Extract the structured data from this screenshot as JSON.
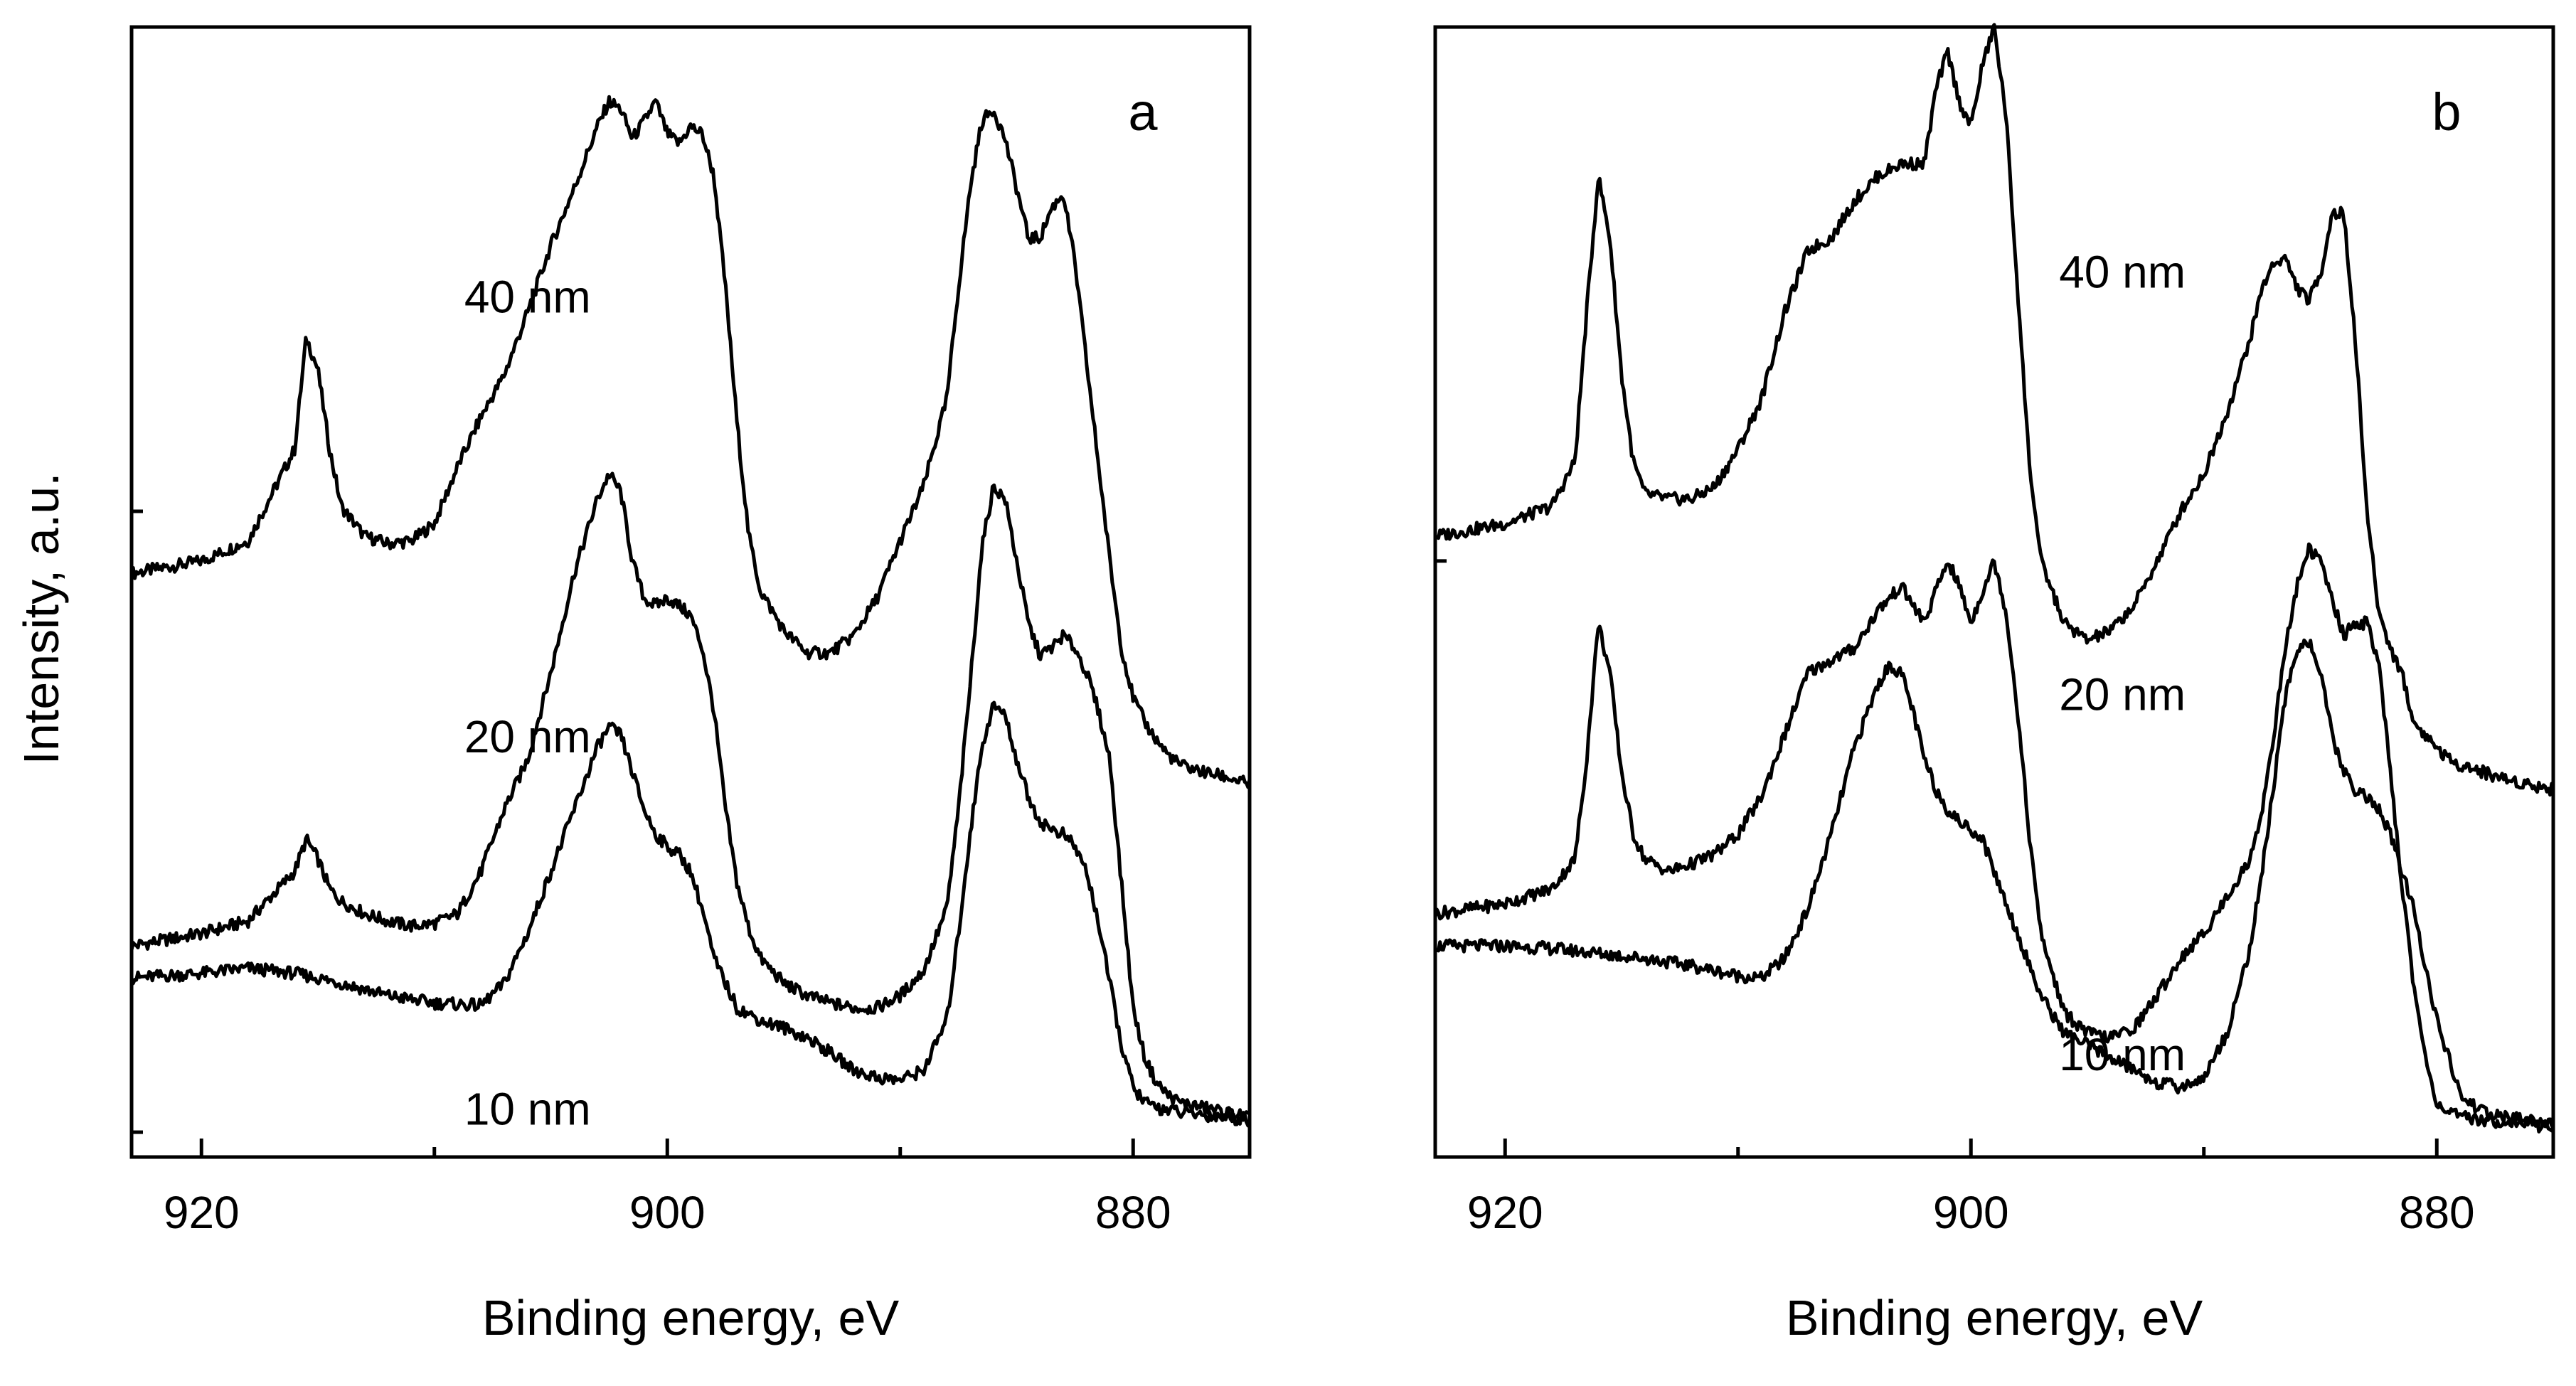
{
  "ylabel": "Intensity, a.u.",
  "colors": {
    "line": "#000000",
    "background": "#ffffff"
  },
  "chart_data": [
    {
      "type": "line",
      "panel_label": "a",
      "xlabel": "Binding energy, eV",
      "ylabel": "Intensity, a.u.",
      "xlim": [
        923,
        875
      ],
      "x_reversed": true,
      "ylim": [
        -0.1,
        4.45
      ],
      "xticks": [
        920,
        900,
        880
      ],
      "xtick_labels": [
        "920",
        "900",
        "880"
      ],
      "minor_xticks": [
        910,
        890
      ],
      "yticks": [
        0,
        2.5
      ],
      "y_scale": "arbitrary (offset stacked spectra)",
      "series": [
        {
          "name": "40 nm",
          "label_at": [
            906,
            3.3
          ],
          "x": [
            923,
            920,
            918,
            916,
            915.5,
            915,
            914.5,
            914,
            913,
            912,
            911,
            910,
            909,
            908,
            907,
            906,
            905,
            904,
            903,
            902.5,
            902,
            901.5,
            901,
            900.5,
            900,
            899.5,
            899,
            898.5,
            898,
            897.5,
            897,
            896.5,
            896,
            895,
            894,
            893,
            892,
            891,
            890,
            889,
            888,
            887.5,
            887,
            886.5,
            886,
            885.5,
            885,
            884.5,
            884,
            883.5,
            883,
            882.5,
            882,
            881.5,
            881,
            880.5,
            880,
            879.5,
            879,
            878.5,
            878,
            877,
            876,
            875
          ],
          "y": [
            2.25,
            2.3,
            2.38,
            2.75,
            3.2,
            3.07,
            2.75,
            2.52,
            2.4,
            2.37,
            2.38,
            2.45,
            2.68,
            2.88,
            3.05,
            3.3,
            3.57,
            3.8,
            4.05,
            4.15,
            4.12,
            4.0,
            4.07,
            4.15,
            4.02,
            3.98,
            4.05,
            4.02,
            3.85,
            3.4,
            2.85,
            2.4,
            2.18,
            2.02,
            1.93,
            1.93,
            2.0,
            2.15,
            2.38,
            2.6,
            2.95,
            3.4,
            3.8,
            4.07,
            4.12,
            4.0,
            3.8,
            3.6,
            3.6,
            3.72,
            3.78,
            3.5,
            3.1,
            2.7,
            2.3,
            1.95,
            1.75,
            1.65,
            1.58,
            1.52,
            1.48,
            1.45,
            1.43,
            1.4
          ]
        },
        {
          "name": "20 nm",
          "label_at": [
            906,
            1.53
          ],
          "x": [
            923,
            920,
            918,
            916,
            915.5,
            915,
            914.5,
            914,
            913,
            912,
            911,
            910,
            909,
            908,
            907,
            906,
            905,
            904,
            903,
            902.5,
            902,
            901.5,
            901,
            900.5,
            900,
            899.5,
            899,
            898.5,
            898,
            897.5,
            897,
            896.5,
            896,
            895,
            894,
            893,
            892,
            891,
            890,
            889,
            888,
            887.5,
            887,
            886.5,
            886,
            885.5,
            885,
            884.5,
            884,
            883.5,
            883,
            882.5,
            882,
            881.5,
            881,
            880.5,
            880,
            879.5,
            879,
            878.5,
            878,
            877,
            876,
            875
          ],
          "y": [
            0.75,
            0.8,
            0.85,
            1.05,
            1.18,
            1.1,
            0.98,
            0.93,
            0.88,
            0.85,
            0.83,
            0.84,
            0.88,
            1.05,
            1.3,
            1.5,
            1.85,
            2.25,
            2.55,
            2.65,
            2.58,
            2.3,
            2.15,
            2.12,
            2.15,
            2.12,
            2.08,
            1.95,
            1.7,
            1.3,
            1.0,
            0.82,
            0.7,
            0.6,
            0.55,
            0.52,
            0.5,
            0.5,
            0.55,
            0.65,
            0.9,
            1.3,
            1.8,
            2.35,
            2.6,
            2.55,
            2.3,
            2.05,
            1.92,
            1.95,
            2.0,
            1.95,
            1.85,
            1.7,
            1.5,
            1.0,
            0.5,
            0.3,
            0.2,
            0.15,
            0.12,
            0.1,
            0.08,
            0.06
          ]
        },
        {
          "name": "10 nm",
          "label_at": [
            906,
            0.03
          ],
          "x": [
            923,
            920,
            918,
            916,
            914,
            912,
            910,
            908,
            907,
            906,
            905,
            904,
            903,
            902.5,
            902,
            901.5,
            901,
            900.5,
            900,
            899.5,
            899,
            898.5,
            898,
            897,
            896,
            895,
            894,
            893,
            892,
            891,
            890,
            889,
            888,
            887.5,
            887,
            886.5,
            886,
            885.5,
            885,
            884.5,
            884,
            883.5,
            883,
            882.5,
            882,
            881.5,
            881,
            880.5,
            880,
            879.5,
            879,
            878,
            877,
            876,
            875
          ],
          "y": [
            0.62,
            0.64,
            0.66,
            0.64,
            0.6,
            0.55,
            0.52,
            0.51,
            0.6,
            0.8,
            1.05,
            1.3,
            1.55,
            1.63,
            1.6,
            1.45,
            1.3,
            1.2,
            1.15,
            1.12,
            1.05,
            0.9,
            0.7,
            0.5,
            0.45,
            0.42,
            0.38,
            0.32,
            0.25,
            0.22,
            0.21,
            0.25,
            0.45,
            0.8,
            1.2,
            1.55,
            1.72,
            1.68,
            1.5,
            1.35,
            1.25,
            1.22,
            1.2,
            1.15,
            1.05,
            0.85,
            0.6,
            0.35,
            0.18,
            0.12,
            0.1,
            0.08,
            0.07,
            0.06,
            0.05
          ]
        }
      ]
    },
    {
      "type": "line",
      "panel_label": "b",
      "xlabel": "Binding energy, eV",
      "ylabel": "Intensity, a.u.",
      "xlim": [
        923,
        875
      ],
      "x_reversed": true,
      "ylim": [
        -0.1,
        4.45
      ],
      "xticks": [
        920,
        900,
        880
      ],
      "xtick_labels": [
        "920",
        "900",
        "880"
      ],
      "minor_xticks": [
        910,
        890
      ],
      "yticks": [
        2.3
      ],
      "y_scale": "arbitrary (offset stacked spectra)",
      "series": [
        {
          "name": "40 nm",
          "label_at": [
            893.5,
            3.4
          ],
          "x": [
            923,
            920,
            918,
            917,
            916.5,
            916,
            915.5,
            915,
            914.5,
            914,
            913,
            912,
            911,
            910,
            909,
            908,
            907,
            906,
            905,
            904,
            903,
            902,
            901.5,
            901,
            900.5,
            900,
            899.5,
            899,
            898.5,
            898,
            897.5,
            897,
            896,
            895,
            894,
            893,
            892,
            891,
            890,
            889,
            888,
            887.5,
            887,
            886.5,
            886,
            885.5,
            885,
            884.5,
            884,
            883.5,
            883,
            882.5,
            882,
            881.5,
            881,
            880.5,
            880,
            879.5,
            879,
            878,
            877,
            876,
            875
          ],
          "y": [
            2.4,
            2.45,
            2.52,
            2.7,
            3.3,
            3.85,
            3.6,
            3.05,
            2.7,
            2.57,
            2.55,
            2.55,
            2.6,
            2.75,
            2.95,
            3.3,
            3.55,
            3.6,
            3.75,
            3.85,
            3.9,
            3.9,
            4.2,
            4.35,
            4.15,
            4.05,
            4.3,
            4.45,
            4.1,
            3.4,
            2.7,
            2.3,
            2.05,
            1.98,
            2.02,
            2.12,
            2.3,
            2.5,
            2.65,
            2.9,
            3.2,
            3.4,
            3.5,
            3.52,
            3.4,
            3.35,
            3.45,
            3.7,
            3.7,
            3.2,
            2.5,
            2.1,
            1.95,
            1.85,
            1.65,
            1.6,
            1.55,
            1.5,
            1.48,
            1.45,
            1.42,
            1.4,
            1.38
          ]
        },
        {
          "name": "20 nm",
          "label_at": [
            893.5,
            1.7
          ],
          "x": [
            923,
            920,
            918,
            917,
            916.5,
            916,
            915.5,
            915,
            914.5,
            914,
            913,
            912,
            911,
            910,
            909,
            908,
            907,
            906,
            905,
            904,
            903,
            902,
            901.5,
            901,
            900.5,
            900,
            899.5,
            899,
            898.5,
            898,
            897.5,
            897,
            896,
            895,
            894,
            893,
            892,
            891,
            890,
            889,
            888,
            887.5,
            887,
            886.5,
            886,
            885.5,
            885,
            884.5,
            884,
            883.5,
            883,
            882.5,
            882,
            881.5,
            881,
            880.5,
            880,
            879.5,
            879,
            878,
            877,
            876,
            875
          ],
          "y": [
            0.88,
            0.92,
            0.98,
            1.1,
            1.5,
            2.05,
            1.85,
            1.45,
            1.2,
            1.1,
            1.05,
            1.08,
            1.12,
            1.2,
            1.35,
            1.6,
            1.85,
            1.9,
            1.95,
            2.1,
            2.2,
            2.05,
            2.18,
            2.3,
            2.2,
            2.05,
            2.18,
            2.3,
            2.1,
            1.7,
            1.2,
            0.8,
            0.48,
            0.4,
            0.38,
            0.42,
            0.55,
            0.7,
            0.8,
            0.95,
            1.1,
            1.3,
            1.6,
            1.95,
            2.2,
            2.35,
            2.3,
            2.15,
            2.0,
            2.05,
            2.05,
            1.9,
            1.45,
            1.0,
            0.6,
            0.3,
            0.12,
            0.08,
            0.06,
            0.05,
            0.04,
            0.03,
            0.02
          ]
        },
        {
          "name": "10 nm",
          "label_at": [
            893.5,
            0.25
          ],
          "x": [
            923,
            920,
            918,
            916,
            914,
            912,
            910,
            909,
            908,
            907,
            906,
            905,
            904,
            903.5,
            903,
            902.5,
            902,
            901.5,
            901,
            900.5,
            900,
            899.5,
            899,
            898,
            897,
            896,
            895,
            894,
            893,
            892,
            891,
            890,
            889,
            888,
            887.5,
            887,
            886.5,
            886,
            885.5,
            885,
            884.5,
            884,
            883.5,
            883,
            882.5,
            882,
            881,
            880,
            879,
            878,
            877,
            876,
            875
          ],
          "y": [
            0.75,
            0.75,
            0.74,
            0.72,
            0.7,
            0.67,
            0.63,
            0.62,
            0.7,
            0.9,
            1.2,
            1.55,
            1.8,
            1.88,
            1.85,
            1.7,
            1.5,
            1.38,
            1.3,
            1.25,
            1.22,
            1.18,
            1.05,
            0.8,
            0.55,
            0.4,
            0.35,
            0.3,
            0.25,
            0.2,
            0.18,
            0.22,
            0.4,
            0.75,
            1.05,
            1.4,
            1.75,
            1.95,
            1.98,
            1.85,
            1.6,
            1.45,
            1.38,
            1.35,
            1.3,
            1.2,
            0.9,
            0.45,
            0.15,
            0.08,
            0.06,
            0.05,
            0.04
          ]
        }
      ]
    }
  ]
}
